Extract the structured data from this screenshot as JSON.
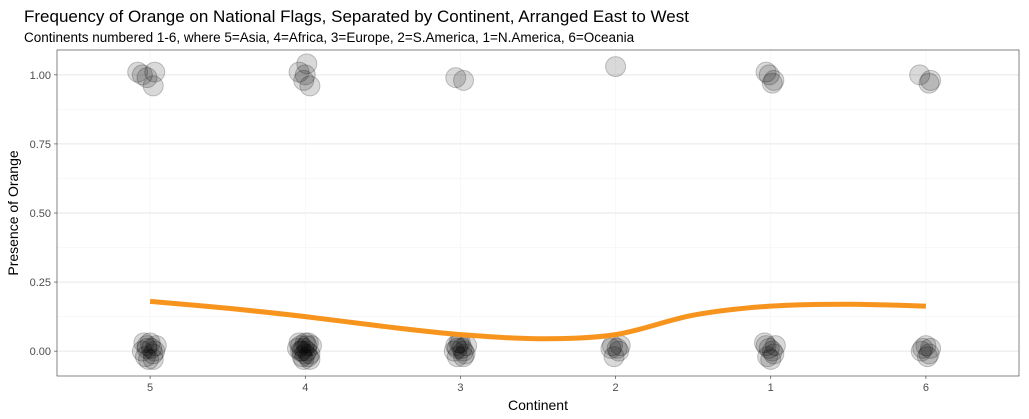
{
  "chart_data": {
    "type": "scatter",
    "title": "Frequency of Orange on National Flags, Separated by Continent, Arranged East to West",
    "subtitle": "Continents numbered 1-6, where 5=Asia, 4=Africa, 3=Europe, 2=S.America, 1=N.America, 6=Oceania",
    "xlabel": "Continent",
    "ylabel": "Presence of Orange",
    "categories": [
      "5",
      "4",
      "3",
      "2",
      "1",
      "6"
    ],
    "ylim": [
      -0.09,
      1.09
    ],
    "y_ticks": [
      0.0,
      0.25,
      0.5,
      0.75,
      1.0
    ],
    "y_tick_labels": [
      "0.00",
      "0.25",
      "0.50",
      "0.75",
      "1.00"
    ],
    "grid": true,
    "point_color": "#000000",
    "point_alpha": 0.15,
    "line_color": "#f7941d",
    "points": [
      {
        "x": 0.92,
        "y": 1.01
      },
      {
        "x": 0.95,
        "y": 1.0
      },
      {
        "x": 1.03,
        "y": 1.01
      },
      {
        "x": 1.02,
        "y": 0.96
      },
      {
        "x": 0.98,
        "y": 0.99
      },
      {
        "x": 0.98,
        "y": 0.02
      },
      {
        "x": 1.02,
        "y": -0.01
      },
      {
        "x": 0.96,
        "y": 0.03
      },
      {
        "x": 1.03,
        "y": 0.0
      },
      {
        "x": 0.99,
        "y": -0.03
      },
      {
        "x": 1.01,
        "y": 0.01
      },
      {
        "x": 0.97,
        "y": -0.02
      },
      {
        "x": 1.04,
        "y": 0.02
      },
      {
        "x": 0.95,
        "y": 0.0
      },
      {
        "x": 1.0,
        "y": 0.03
      },
      {
        "x": 1.02,
        "y": -0.03
      },
      {
        "x": 0.98,
        "y": 0.01
      },
      {
        "x": 1.96,
        "y": 1.01
      },
      {
        "x": 2.01,
        "y": 1.04
      },
      {
        "x": 1.99,
        "y": 0.98
      },
      {
        "x": 2.03,
        "y": 0.96
      },
      {
        "x": 2.0,
        "y": 1.0
      },
      {
        "x": 1.97,
        "y": 0.02
      },
      {
        "x": 2.03,
        "y": -0.01
      },
      {
        "x": 1.95,
        "y": 0.01
      },
      {
        "x": 2.02,
        "y": 0.03
      },
      {
        "x": 1.99,
        "y": -0.03
      },
      {
        "x": 2.01,
        "y": 0.0
      },
      {
        "x": 1.98,
        "y": -0.02
      },
      {
        "x": 2.04,
        "y": 0.02
      },
      {
        "x": 1.96,
        "y": 0.03
      },
      {
        "x": 2.0,
        "y": -0.01
      },
      {
        "x": 2.03,
        "y": -0.03
      },
      {
        "x": 1.97,
        "y": 0.0
      },
      {
        "x": 2.01,
        "y": 0.02
      },
      {
        "x": 1.99,
        "y": 0.01
      },
      {
        "x": 2.02,
        "y": -0.02
      },
      {
        "x": 1.98,
        "y": 0.0
      },
      {
        "x": 2.0,
        "y": 0.03
      },
      {
        "x": 2.97,
        "y": 0.99
      },
      {
        "x": 3.02,
        "y": 0.98
      },
      {
        "x": 2.97,
        "y": 0.02
      },
      {
        "x": 3.02,
        "y": 0.0
      },
      {
        "x": 2.99,
        "y": 0.03
      },
      {
        "x": 3.04,
        "y": 0.02
      },
      {
        "x": 2.98,
        "y": -0.02
      },
      {
        "x": 3.01,
        "y": 0.01
      },
      {
        "x": 3.03,
        "y": -0.01
      },
      {
        "x": 2.96,
        "y": 0.0
      },
      {
        "x": 3.0,
        "y": 0.03
      },
      {
        "x": 3.02,
        "y": -0.02
      },
      {
        "x": 2.98,
        "y": 0.01
      },
      {
        "x": 4.0,
        "y": 1.03
      },
      {
        "x": 3.98,
        "y": 0.02
      },
      {
        "x": 4.02,
        "y": 0.0
      },
      {
        "x": 3.99,
        "y": -0.02
      },
      {
        "x": 4.03,
        "y": 0.02
      },
      {
        "x": 3.97,
        "y": 0.01
      },
      {
        "x": 4.01,
        "y": 0.01
      },
      {
        "x": 4.97,
        "y": 1.01
      },
      {
        "x": 5.01,
        "y": 0.97
      },
      {
        "x": 5.02,
        "y": 0.98
      },
      {
        "x": 4.99,
        "y": 1.0
      },
      {
        "x": 4.97,
        "y": 0.02
      },
      {
        "x": 5.02,
        "y": -0.01
      },
      {
        "x": 4.99,
        "y": 0.01
      },
      {
        "x": 5.03,
        "y": 0.02
      },
      {
        "x": 4.98,
        "y": -0.02
      },
      {
        "x": 5.01,
        "y": 0.0
      },
      {
        "x": 4.96,
        "y": 0.03
      },
      {
        "x": 5.0,
        "y": -0.03
      },
      {
        "x": 5.96,
        "y": 1.0
      },
      {
        "x": 6.03,
        "y": 0.98
      },
      {
        "x": 6.02,
        "y": 0.97
      },
      {
        "x": 5.98,
        "y": 0.01
      },
      {
        "x": 6.02,
        "y": -0.01
      },
      {
        "x": 6.0,
        "y": 0.02
      },
      {
        "x": 5.97,
        "y": 0.0
      },
      {
        "x": 6.03,
        "y": 0.01
      },
      {
        "x": 6.01,
        "y": -0.02
      }
    ],
    "smooth_line": [
      {
        "x": 1.0,
        "y": 0.18
      },
      {
        "x": 1.5,
        "y": 0.155
      },
      {
        "x": 2.0,
        "y": 0.125
      },
      {
        "x": 2.5,
        "y": 0.09
      },
      {
        "x": 3.0,
        "y": 0.06
      },
      {
        "x": 3.5,
        "y": 0.045
      },
      {
        "x": 4.0,
        "y": 0.06
      },
      {
        "x": 4.5,
        "y": 0.13
      },
      {
        "x": 5.0,
        "y": 0.163
      },
      {
        "x": 5.5,
        "y": 0.17
      },
      {
        "x": 6.0,
        "y": 0.163
      }
    ]
  }
}
